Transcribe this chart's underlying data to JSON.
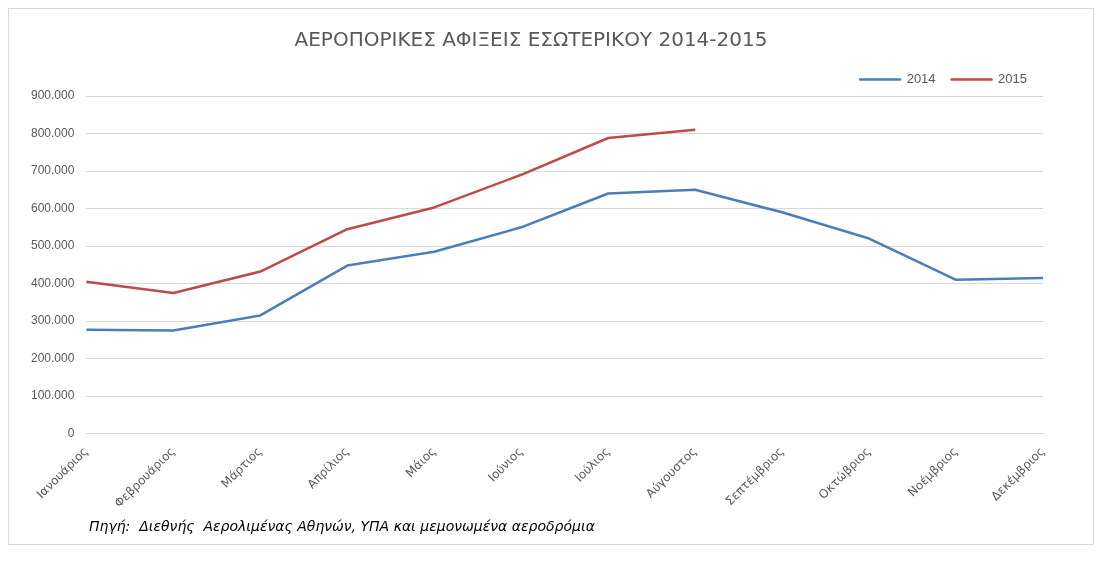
{
  "chart_data": {
    "type": "line",
    "title": "ΑΕΡΟΠΟΡΙΚΕΣ ΑΦΙΞΕΙΣ ΕΣΩΤΕΡΙΚΟΥ 2014-2015",
    "categories": [
      "Ιανουάριος",
      "Φεβρουάριος",
      "Μάρτιος",
      "Απρίλιος",
      "Μάιος",
      "Ιούνιος",
      "Ιούλιος",
      "Αύγουστος",
      "Σεπτέμβριος",
      "Οκτώβριος",
      "Νοέμβριος",
      "Δεκέμβριος"
    ],
    "series": [
      {
        "name": "2014",
        "color": "#4a7ebb",
        "values": [
          277000,
          275000,
          315000,
          448000,
          485000,
          550000,
          640000,
          650000,
          590000,
          520000,
          410000,
          415000
        ]
      },
      {
        "name": "2015",
        "color": "#be4b48",
        "values": [
          405000,
          375000,
          432000,
          545000,
          603000,
          690000,
          788000,
          810000,
          null,
          null,
          null,
          null
        ]
      }
    ],
    "ylim": [
      0,
      900000
    ],
    "yticks": [
      0,
      {
        "value": 100000,
        "label": "100.000"
      },
      {
        "value": 200000,
        "label": "200.000"
      },
      {
        "value": 300000,
        "label": "300.000"
      },
      {
        "value": 400000,
        "label": "400.000"
      },
      {
        "value": 500000,
        "label": "500.000"
      },
      {
        "value": 600000,
        "label": "600.000"
      },
      {
        "value": 700000,
        "label": "700.000"
      },
      {
        "value": 800000,
        "label": "800.000"
      },
      {
        "value": 900000,
        "label": "900.000"
      }
    ],
    "grid": "y",
    "legend": "top right",
    "marker": "none",
    "line_style": "solid",
    "annotations": [
      "Πηγή:  Διεθνής  Αερολιμένας Αθηνών, ΥΠΑ και μεμονωμένα αεροδρόμια"
    ]
  }
}
